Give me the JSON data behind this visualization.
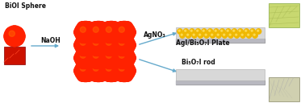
{
  "bg_color": "#ffffff",
  "title": "",
  "bioi_sphere_label": "BiOI Sphere",
  "naoh_label": "NaOH",
  "agno3_label": "AgNO₃",
  "bi5o7i_rod_label": "Bi₅O₇I rod",
  "agi_plate_label": "AgI/Bi₅O₇I Plate",
  "sphere_color": "#ff2200",
  "sphere_highlight": "#ff6600",
  "plate_color_top": "#e0e0e0",
  "plate_color_side": "#c0c0c8",
  "dot_color": "#f0b800",
  "arrow_color": "#66aacc",
  "label_color": "#111111",
  "sub_label_color": "#333333",
  "figsize": [
    3.78,
    1.28
  ],
  "dpi": 100
}
